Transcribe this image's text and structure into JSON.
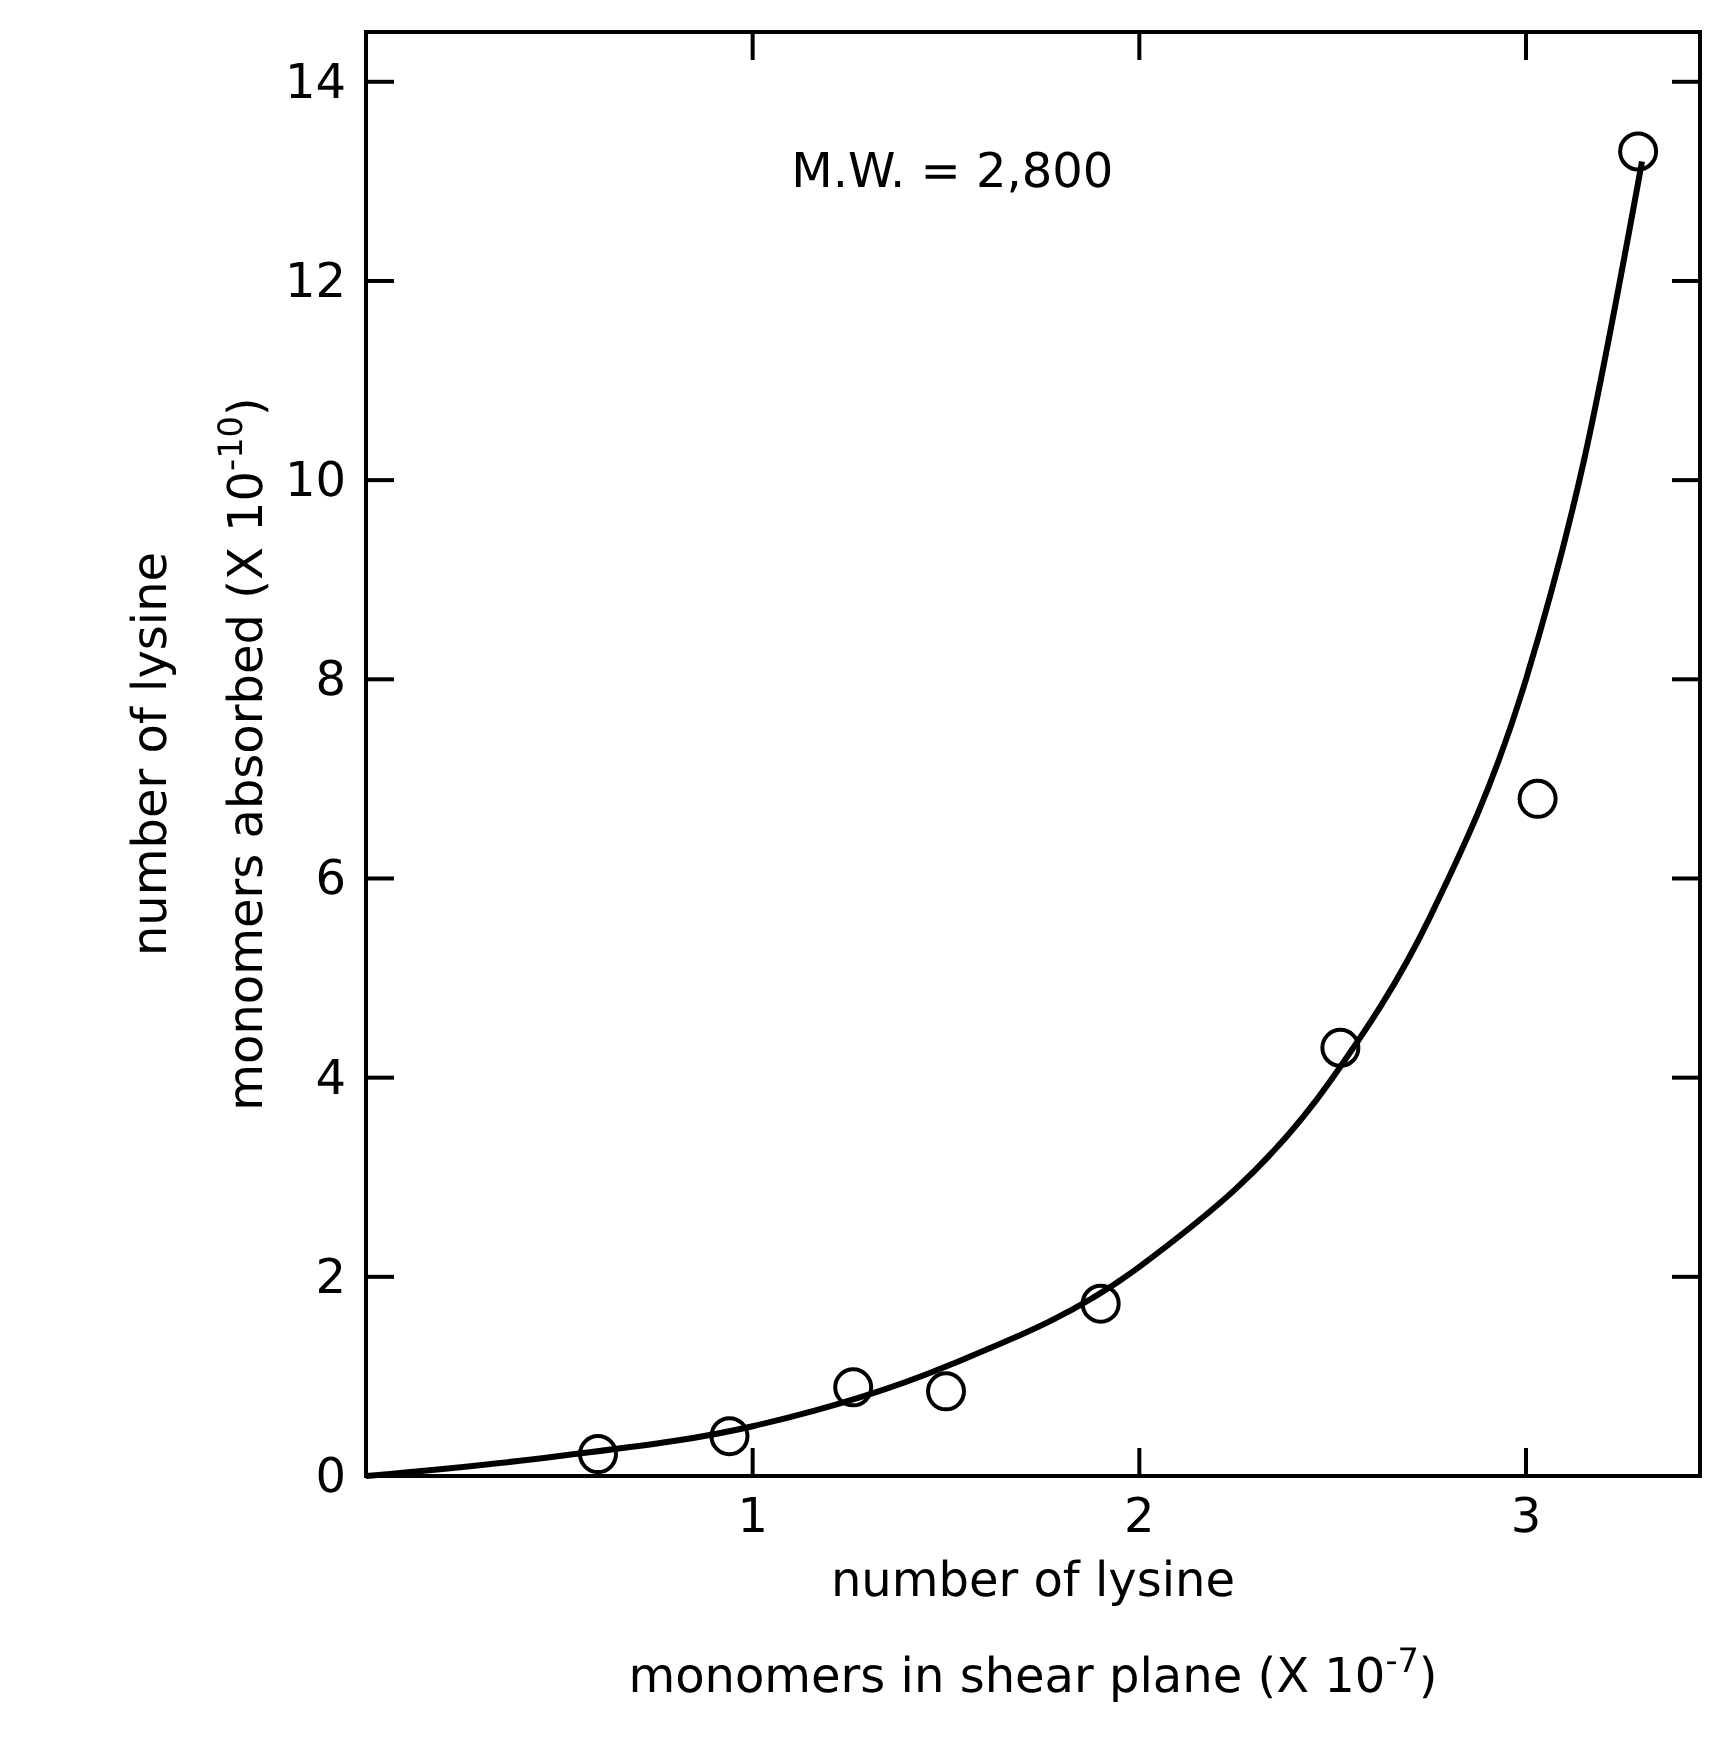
{
  "chart_data": {
    "type": "scatter",
    "xlabel": "number of lysine\nmonomers in shear plane (X 10$^{-7}$)",
    "ylabel": "number of lysine\nmonomers absorbed (X 10$^{-10}$)",
    "annotations": [
      "M.W. = 2,800"
    ],
    "xlim": [
      0,
      3.45
    ],
    "ylim": [
      0,
      14.5
    ],
    "xticks": [
      1,
      2,
      3
    ],
    "yticks": [
      0,
      2,
      4,
      6,
      8,
      10,
      12,
      14
    ],
    "grid": false,
    "series": [
      {
        "color": "#000000",
        "marker": "circle",
        "x": [
          0.6,
          0.94,
          1.26,
          1.5,
          1.9,
          2.52,
          3.03,
          3.29
        ],
        "values": [
          0.22,
          0.4,
          0.89,
          0.85,
          1.73,
          4.3,
          6.8,
          13.3
        ]
      },
      {
        "type": "line",
        "color": "#000000",
        "marker": "none",
        "line_style": "solid",
        "x": [
          0,
          0.5,
          1,
          1.5,
          2,
          2.5,
          2.75,
          3,
          3.15,
          3.3
        ],
        "values": [
          0,
          0.2,
          0.5,
          1.1,
          2.1,
          4.0,
          5.6,
          8.0,
          10.2,
          13.2
        ]
      }
    ]
  }
}
